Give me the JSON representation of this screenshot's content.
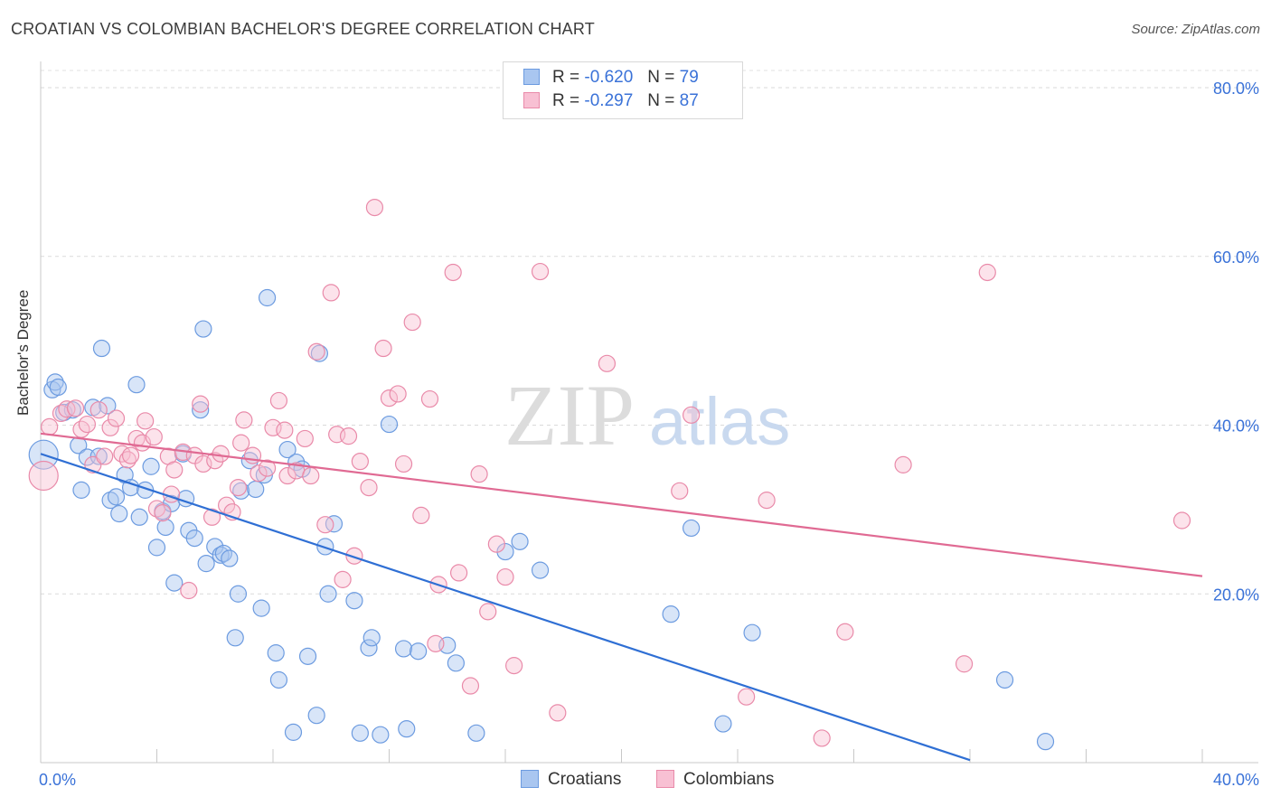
{
  "title": "CROATIAN VS COLOMBIAN BACHELOR'S DEGREE CORRELATION CHART",
  "source": "Source: ZipAtlas.com",
  "watermark": {
    "zip": "ZIP",
    "atlas": "atlas"
  },
  "legend": {
    "r_label": "R =",
    "n_label": "N =",
    "rows": [
      {
        "r": "-0.620",
        "n": "79",
        "color": "#a9c6f0",
        "edge": "#6c9be0"
      },
      {
        "r": "-0.297",
        "n": "87",
        "color": "#f8c0d3",
        "edge": "#e98aa9"
      }
    ]
  },
  "chart_data": {
    "type": "scatter",
    "title": "CROATIAN VS COLOMBIAN BACHELOR'S DEGREE CORRELATION CHART",
    "ylabel": "Bachelor's Degree",
    "xlabel": "",
    "xlim": [
      0,
      40
    ],
    "ylim": [
      0,
      80
    ],
    "x_tick_labels": [
      "0.0%",
      "40.0%"
    ],
    "y_ticks": [
      20,
      40,
      60,
      80
    ],
    "y_tick_labels": [
      "20.0%",
      "40.0%",
      "60.0%",
      "80.0%"
    ],
    "grid": "horizontal dashed",
    "legend_placement": "top-center",
    "series": [
      {
        "name": "Croatians",
        "color": "#6c9be0",
        "fill": "#a9c6f0",
        "trend": {
          "x": [
            0,
            32.0
          ],
          "y": [
            36.6,
            0.3
          ],
          "color": "#2f6fd4"
        },
        "points": [
          [
            0.1,
            36.5
          ],
          [
            0.4,
            44.2
          ],
          [
            0.5,
            45.1
          ],
          [
            0.6,
            44.5
          ],
          [
            0.8,
            41.5
          ],
          [
            1.1,
            41.8
          ],
          [
            1.3,
            37.6
          ],
          [
            1.4,
            32.3
          ],
          [
            1.6,
            36.2
          ],
          [
            1.8,
            42.1
          ],
          [
            2.0,
            36.3
          ],
          [
            2.1,
            49.1
          ],
          [
            2.3,
            42.3
          ],
          [
            2.4,
            31.1
          ],
          [
            2.6,
            31.5
          ],
          [
            2.7,
            29.5
          ],
          [
            2.9,
            34.1
          ],
          [
            3.1,
            32.6
          ],
          [
            3.3,
            44.8
          ],
          [
            3.4,
            29.1
          ],
          [
            3.6,
            32.3
          ],
          [
            3.8,
            35.1
          ],
          [
            4.0,
            25.5
          ],
          [
            4.2,
            29.8
          ],
          [
            4.3,
            27.9
          ],
          [
            4.5,
            30.7
          ],
          [
            4.6,
            21.3
          ],
          [
            4.9,
            36.6
          ],
          [
            5.0,
            31.3
          ],
          [
            5.1,
            27.5
          ],
          [
            5.3,
            26.6
          ],
          [
            5.5,
            41.8
          ],
          [
            5.6,
            51.4
          ],
          [
            5.7,
            23.6
          ],
          [
            6.0,
            25.6
          ],
          [
            6.2,
            24.6
          ],
          [
            6.3,
            24.8
          ],
          [
            6.5,
            24.2
          ],
          [
            6.7,
            14.8
          ],
          [
            6.8,
            20.0
          ],
          [
            6.9,
            32.2
          ],
          [
            7.2,
            35.8
          ],
          [
            7.4,
            32.4
          ],
          [
            7.6,
            18.3
          ],
          [
            7.7,
            34.1
          ],
          [
            7.8,
            55.1
          ],
          [
            8.1,
            13.0
          ],
          [
            8.2,
            9.8
          ],
          [
            8.5,
            37.1
          ],
          [
            8.7,
            3.6
          ],
          [
            8.8,
            35.6
          ],
          [
            9.0,
            34.8
          ],
          [
            9.2,
            12.6
          ],
          [
            9.5,
            5.6
          ],
          [
            9.6,
            48.5
          ],
          [
            9.8,
            25.6
          ],
          [
            9.9,
            20.0
          ],
          [
            10.1,
            28.3
          ],
          [
            10.8,
            19.2
          ],
          [
            11.0,
            3.5
          ],
          [
            11.3,
            13.6
          ],
          [
            11.4,
            14.8
          ],
          [
            11.7,
            3.3
          ],
          [
            12.0,
            40.1
          ],
          [
            12.5,
            13.5
          ],
          [
            12.6,
            4.0
          ],
          [
            13.0,
            13.2
          ],
          [
            14.0,
            13.9
          ],
          [
            14.3,
            11.8
          ],
          [
            15.0,
            3.5
          ],
          [
            16.5,
            26.2
          ],
          [
            17.2,
            22.8
          ],
          [
            21.7,
            17.6
          ],
          [
            22.4,
            27.8
          ],
          [
            23.5,
            4.6
          ],
          [
            24.5,
            15.4
          ],
          [
            33.2,
            9.8
          ],
          [
            34.6,
            2.5
          ],
          [
            16.0,
            25.0
          ]
        ]
      },
      {
        "name": "Colombians",
        "color": "#e98aa9",
        "fill": "#f8c0d3",
        "trend": {
          "x": [
            0,
            40
          ],
          "y": [
            39.0,
            22.1
          ],
          "color": "#e06a93"
        },
        "points": [
          [
            0.1,
            34.0
          ],
          [
            0.3,
            39.8
          ],
          [
            0.7,
            41.4
          ],
          [
            0.9,
            41.9
          ],
          [
            1.2,
            42.0
          ],
          [
            1.4,
            39.5
          ],
          [
            1.6,
            40.1
          ],
          [
            1.8,
            35.3
          ],
          [
            2.0,
            41.8
          ],
          [
            2.2,
            36.3
          ],
          [
            2.4,
            39.7
          ],
          [
            2.6,
            40.8
          ],
          [
            2.8,
            36.6
          ],
          [
            3.0,
            35.9
          ],
          [
            3.1,
            36.4
          ],
          [
            3.3,
            38.4
          ],
          [
            3.5,
            37.9
          ],
          [
            3.6,
            40.5
          ],
          [
            3.9,
            38.6
          ],
          [
            4.0,
            30.1
          ],
          [
            4.2,
            29.6
          ],
          [
            4.4,
            36.3
          ],
          [
            4.5,
            31.8
          ],
          [
            4.6,
            34.7
          ],
          [
            4.9,
            36.8
          ],
          [
            5.1,
            20.4
          ],
          [
            5.3,
            36.4
          ],
          [
            5.5,
            42.5
          ],
          [
            5.6,
            35.4
          ],
          [
            5.9,
            29.1
          ],
          [
            6.0,
            35.8
          ],
          [
            6.2,
            36.6
          ],
          [
            6.4,
            30.5
          ],
          [
            6.6,
            29.7
          ],
          [
            6.8,
            32.6
          ],
          [
            6.9,
            37.9
          ],
          [
            7.0,
            40.6
          ],
          [
            7.3,
            36.4
          ],
          [
            7.5,
            34.3
          ],
          [
            7.8,
            34.9
          ],
          [
            8.0,
            39.7
          ],
          [
            8.2,
            42.9
          ],
          [
            8.4,
            39.4
          ],
          [
            8.5,
            34.0
          ],
          [
            8.8,
            34.6
          ],
          [
            9.1,
            38.4
          ],
          [
            9.3,
            34.0
          ],
          [
            9.5,
            48.7
          ],
          [
            9.8,
            28.2
          ],
          [
            10.0,
            55.7
          ],
          [
            10.2,
            38.9
          ],
          [
            10.4,
            21.7
          ],
          [
            10.6,
            38.7
          ],
          [
            10.8,
            24.5
          ],
          [
            11.0,
            35.7
          ],
          [
            11.3,
            32.6
          ],
          [
            11.5,
            65.8
          ],
          [
            11.8,
            49.1
          ],
          [
            12.0,
            43.2
          ],
          [
            12.3,
            43.7
          ],
          [
            12.5,
            35.4
          ],
          [
            12.8,
            52.2
          ],
          [
            13.1,
            29.3
          ],
          [
            13.4,
            43.1
          ],
          [
            13.6,
            14.1
          ],
          [
            13.7,
            21.1
          ],
          [
            14.2,
            58.1
          ],
          [
            14.4,
            22.5
          ],
          [
            14.8,
            9.1
          ],
          [
            15.1,
            34.2
          ],
          [
            15.4,
            17.9
          ],
          [
            15.7,
            25.9
          ],
          [
            16.0,
            22.0
          ],
          [
            16.3,
            11.5
          ],
          [
            17.2,
            58.2
          ],
          [
            17.8,
            5.9
          ],
          [
            19.5,
            47.3
          ],
          [
            22.0,
            32.2
          ],
          [
            22.4,
            41.2
          ],
          [
            24.3,
            7.8
          ],
          [
            25.0,
            31.1
          ],
          [
            26.9,
            2.9
          ],
          [
            27.7,
            15.5
          ],
          [
            29.7,
            35.3
          ],
          [
            31.8,
            11.7
          ],
          [
            32.6,
            58.1
          ],
          [
            39.3,
            28.7
          ]
        ]
      }
    ]
  }
}
